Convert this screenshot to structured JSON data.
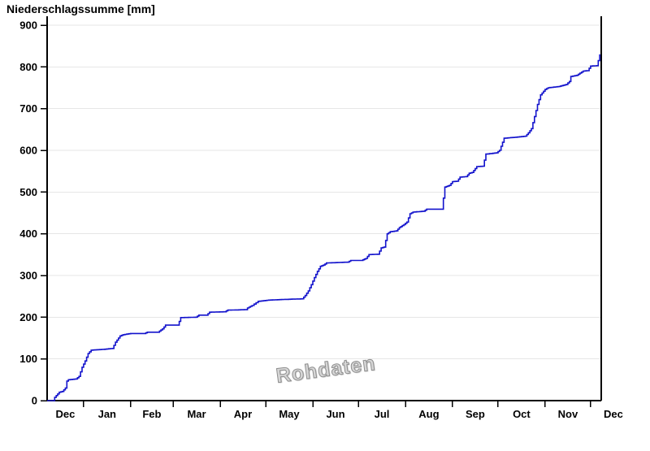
{
  "page_title": "Niederschlagssumme [mm]",
  "watermark": "Rohdaten",
  "colors": {
    "line": "#1212cc",
    "grid": "#e6e6e6",
    "axis": "#000000",
    "text": "#000000"
  },
  "chart_data": {
    "type": "line",
    "title": "Niederschlagssumme [mm]",
    "ylabel": "Niederschlagssumme [mm]",
    "xlabel": "",
    "ylim": [
      0,
      900
    ],
    "yticks": [
      0,
      100,
      200,
      300,
      400,
      500,
      600,
      700,
      800,
      900
    ],
    "x_span_days": 365,
    "x_month_tick_days": [
      24,
      55,
      83,
      114,
      144,
      175,
      205,
      236,
      267,
      297,
      328,
      358
    ],
    "x_month_labels": [
      "Dec",
      "Jan",
      "Feb",
      "Mar",
      "Apr",
      "May",
      "Jun",
      "Jul",
      "Aug",
      "Sep",
      "Oct",
      "Nov",
      "Dec"
    ],
    "grid": "horizontal-only",
    "legend": "none",
    "watermark": "Rohdaten",
    "series": [
      {
        "name": "Niederschlagssumme (Rohdaten)",
        "style": "cumulative-daily-step",
        "unit": "mm",
        "final_value_mm": 830,
        "points_day_mm": [
          [
            0,
            0
          ],
          [
            4,
            0
          ],
          [
            5,
            8
          ],
          [
            8,
            20
          ],
          [
            10,
            22
          ],
          [
            12,
            30
          ],
          [
            13,
            47
          ],
          [
            14,
            50
          ],
          [
            19,
            52
          ],
          [
            21,
            58
          ],
          [
            23,
            80
          ],
          [
            25,
            95
          ],
          [
            27,
            113
          ],
          [
            29,
            121
          ],
          [
            37,
            123
          ],
          [
            43,
            125
          ],
          [
            45,
            140
          ],
          [
            48,
            155
          ],
          [
            50,
            158
          ],
          [
            55,
            161
          ],
          [
            64,
            161
          ],
          [
            66,
            164
          ],
          [
            73,
            164
          ],
          [
            76,
            172
          ],
          [
            78,
            181
          ],
          [
            86,
            181
          ],
          [
            88,
            199
          ],
          [
            98,
            200
          ],
          [
            100,
            205
          ],
          [
            105,
            205
          ],
          [
            107,
            212
          ],
          [
            117,
            213
          ],
          [
            119,
            217
          ],
          [
            131,
            218
          ],
          [
            132,
            222
          ],
          [
            135,
            228
          ],
          [
            139,
            238
          ],
          [
            146,
            241
          ],
          [
            159,
            243
          ],
          [
            168,
            244
          ],
          [
            170,
            252
          ],
          [
            172,
            263
          ],
          [
            174,
            278
          ],
          [
            176,
            295
          ],
          [
            178,
            310
          ],
          [
            180,
            322
          ],
          [
            182,
            325
          ],
          [
            184,
            330
          ],
          [
            198,
            332
          ],
          [
            200,
            336
          ],
          [
            207,
            336
          ],
          [
            210,
            341
          ],
          [
            212,
            350
          ],
          [
            218,
            351
          ],
          [
            220,
            366
          ],
          [
            222,
            368
          ],
          [
            224,
            400
          ],
          [
            226,
            405
          ],
          [
            230,
            407
          ],
          [
            232,
            415
          ],
          [
            235,
            422
          ],
          [
            237,
            428
          ],
          [
            239,
            448
          ],
          [
            241,
            452
          ],
          [
            248,
            454
          ],
          [
            250,
            459
          ],
          [
            260,
            459
          ],
          [
            262,
            512
          ],
          [
            265,
            516
          ],
          [
            267,
            525
          ],
          [
            270,
            526
          ],
          [
            272,
            536
          ],
          [
            276,
            537
          ],
          [
            278,
            545
          ],
          [
            280,
            547
          ],
          [
            283,
            561
          ],
          [
            287,
            562
          ],
          [
            289,
            591
          ],
          [
            296,
            594
          ],
          [
            298,
            600
          ],
          [
            301,
            629
          ],
          [
            310,
            632
          ],
          [
            315,
            634
          ],
          [
            317,
            642
          ],
          [
            319,
            652
          ],
          [
            321,
            681
          ],
          [
            323,
            710
          ],
          [
            325,
            733
          ],
          [
            328,
            746
          ],
          [
            330,
            750
          ],
          [
            337,
            753
          ],
          [
            340,
            756
          ],
          [
            342,
            758
          ],
          [
            344,
            765
          ],
          [
            345,
            777
          ],
          [
            349,
            780
          ],
          [
            351,
            785
          ],
          [
            353,
            790
          ],
          [
            356,
            791
          ],
          [
            358,
            802
          ],
          [
            362,
            803
          ],
          [
            363,
            815
          ],
          [
            364,
            830
          ]
        ]
      }
    ]
  }
}
